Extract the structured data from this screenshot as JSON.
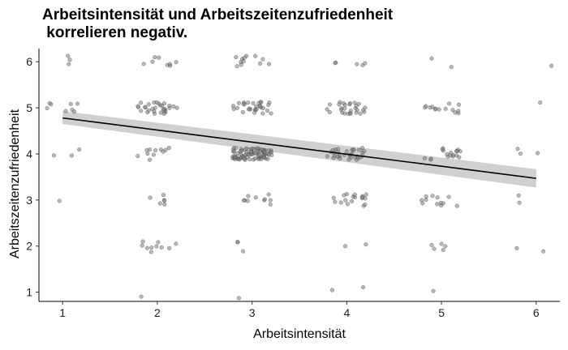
{
  "chart_data": {
    "type": "scatter",
    "title": "Arbeitsintensität und Arbeitszeitenzufriedenheit\n korrelieren negativ.",
    "xlabel": "Arbeitsintensität",
    "ylabel": "Arbeitszeitenzufriedenheit",
    "xlim": [
      0.75,
      6.25
    ],
    "ylim": [
      0.8,
      6.25
    ],
    "x_ticks": [
      1,
      2,
      3,
      4,
      5,
      6
    ],
    "y_ticks": [
      1,
      2,
      3,
      4,
      5,
      6
    ],
    "grid": false,
    "points_jittered": true,
    "point_color": "#808080",
    "points": [
      {
        "x": 1,
        "y": 6,
        "n": 3
      },
      {
        "x": 1,
        "y": 5,
        "n": 8
      },
      {
        "x": 1,
        "y": 4,
        "n": 3
      },
      {
        "x": 1,
        "y": 3,
        "n": 1
      },
      {
        "x": 2,
        "y": 6,
        "n": 8
      },
      {
        "x": 2,
        "y": 5,
        "n": 30
      },
      {
        "x": 2,
        "y": 4,
        "n": 11
      },
      {
        "x": 2,
        "y": 3,
        "n": 6
      },
      {
        "x": 2,
        "y": 2,
        "n": 10
      },
      {
        "x": 2,
        "y": 1,
        "n": 1
      },
      {
        "x": 3,
        "y": 6,
        "n": 12
      },
      {
        "x": 3,
        "y": 5,
        "n": 30
      },
      {
        "x": 3,
        "y": 4,
        "n": 90
      },
      {
        "x": 3,
        "y": 3,
        "n": 10
      },
      {
        "x": 3,
        "y": 2,
        "n": 3
      },
      {
        "x": 3,
        "y": 1,
        "n": 1
      },
      {
        "x": 4,
        "y": 6,
        "n": 5
      },
      {
        "x": 4,
        "y": 5,
        "n": 28
      },
      {
        "x": 4,
        "y": 4,
        "n": 32
      },
      {
        "x": 4,
        "y": 3,
        "n": 18
      },
      {
        "x": 4,
        "y": 2,
        "n": 2
      },
      {
        "x": 4,
        "y": 1,
        "n": 2
      },
      {
        "x": 5,
        "y": 6,
        "n": 2
      },
      {
        "x": 5,
        "y": 5,
        "n": 14
      },
      {
        "x": 5,
        "y": 4,
        "n": 18
      },
      {
        "x": 5,
        "y": 3,
        "n": 12
      },
      {
        "x": 5,
        "y": 2,
        "n": 5
      },
      {
        "x": 5,
        "y": 1,
        "n": 1
      },
      {
        "x": 6,
        "y": 6,
        "n": 1
      },
      {
        "x": 6,
        "y": 5,
        "n": 1
      },
      {
        "x": 6,
        "y": 4,
        "n": 3
      },
      {
        "x": 6,
        "y": 3,
        "n": 2
      },
      {
        "x": 6,
        "y": 2,
        "n": 2
      }
    ],
    "trend_line": {
      "x": [
        1,
        6
      ],
      "y": [
        4.78,
        3.47
      ],
      "ci_lower": [
        4.65,
        3.27
      ],
      "ci_upper": [
        4.93,
        3.67
      ],
      "line_color": "#000000",
      "band_color": "#c8c8c8"
    }
  }
}
